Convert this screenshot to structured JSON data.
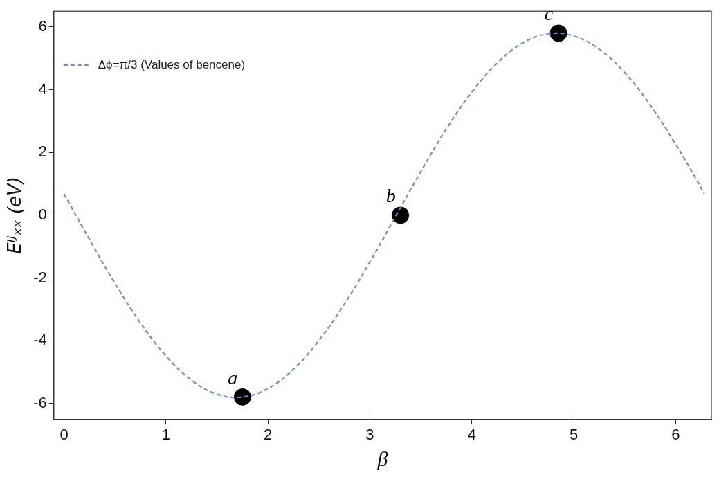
{
  "chart_data": {
    "type": "line",
    "x_label": "β",
    "y_label": "Eᴵᴶₓₓ (eV)",
    "series": [
      {
        "name": "Δϕ=π/3 (Values of bencene)",
        "color": "#6b8fc8",
        "line_style": "dashed",
        "x": [
          0,
          0.25,
          0.5,
          0.75,
          1.0,
          1.25,
          1.5,
          1.75,
          2.0,
          2.25,
          2.5,
          2.75,
          3.0,
          3.25,
          3.5,
          3.75,
          4.0,
          4.25,
          4.5,
          4.75,
          5.0,
          5.25,
          5.5,
          5.75,
          6.0,
          6.15,
          6.28
        ],
        "values": [
          0.68,
          -0.77,
          -2.17,
          -3.43,
          -4.48,
          -5.25,
          -5.7,
          -5.79,
          -5.52,
          -4.91,
          -3.99,
          -2.83,
          -1.49,
          -0.05,
          1.39,
          2.75,
          3.92,
          4.85,
          5.49,
          5.78,
          5.71,
          5.29,
          4.54,
          3.51,
          2.26,
          1.44,
          0.69
        ]
      }
    ],
    "annotations": [
      {
        "text": "a",
        "x": 1.75,
        "y": -5.79,
        "marker": "circle",
        "color": "#000000"
      },
      {
        "text": "b",
        "x": 3.3,
        "y": 0.0,
        "marker": "circle",
        "color": "#000000"
      },
      {
        "text": "c",
        "x": 4.85,
        "y": 5.8,
        "marker": "circle",
        "color": "#000000"
      }
    ],
    "xlim": [
      -0.1,
      6.35
    ],
    "xticks": [
      0,
      1,
      2,
      3,
      4,
      5,
      6
    ],
    "ylim": [
      -6.5,
      6.5
    ],
    "yticks": [
      -6,
      -4,
      -2,
      0,
      2,
      4,
      6
    ],
    "grid": false,
    "legend": "upper left"
  }
}
